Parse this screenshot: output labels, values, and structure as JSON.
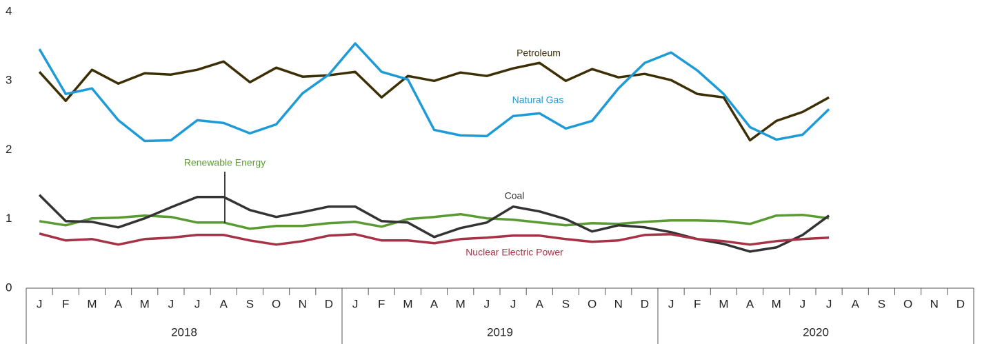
{
  "chart_data": {
    "type": "line",
    "categories": [
      "J",
      "F",
      "M",
      "A",
      "M",
      "J",
      "J",
      "A",
      "S",
      "O",
      "N",
      "D",
      "J",
      "F",
      "M",
      "A",
      "M",
      "J",
      "J",
      "A",
      "S",
      "O",
      "N",
      "D",
      "J",
      "F",
      "M",
      "A",
      "M",
      "J",
      "J",
      "A",
      "S",
      "O",
      "N",
      "D"
    ],
    "groups": [
      "2018",
      "2019",
      "2020"
    ],
    "ylim": [
      0,
      4
    ],
    "yticks": [
      0,
      1,
      2,
      3,
      4
    ],
    "series": [
      {
        "name": "Petroleum",
        "color": "#3d2f05",
        "values": [
          3.13,
          2.71,
          3.16,
          2.96,
          3.11,
          3.09,
          3.16,
          3.28,
          2.98,
          3.19,
          3.06,
          3.08,
          3.13,
          2.76,
          3.07,
          3.0,
          3.12,
          3.07,
          3.18,
          3.26,
          3.0,
          3.17,
          3.05,
          3.1,
          3.01,
          2.81,
          2.76,
          2.14,
          2.42,
          2.55,
          2.76,
          null,
          null,
          null,
          null,
          null
        ]
      },
      {
        "name": "Natural Gas",
        "color": "#1e9bd7",
        "values": [
          3.46,
          2.81,
          2.89,
          2.43,
          2.13,
          2.14,
          2.43,
          2.39,
          2.24,
          2.37,
          2.82,
          3.09,
          3.54,
          3.13,
          3.02,
          2.29,
          2.21,
          2.2,
          2.49,
          2.53,
          2.31,
          2.42,
          2.89,
          3.26,
          3.41,
          3.15,
          2.81,
          2.33,
          2.15,
          2.22,
          2.59,
          null,
          null,
          null,
          null,
          null
        ]
      },
      {
        "name": "Renewable Energy",
        "color": "#5a9a32",
        "values": [
          0.97,
          0.91,
          1.01,
          1.02,
          1.05,
          1.03,
          0.95,
          0.95,
          0.86,
          0.9,
          0.9,
          0.94,
          0.96,
          0.89,
          1.0,
          1.03,
          1.07,
          1.01,
          0.99,
          0.95,
          0.91,
          0.94,
          0.93,
          0.96,
          0.98,
          0.98,
          0.97,
          0.93,
          1.05,
          1.06,
          1.01,
          null,
          null,
          null,
          null,
          null
        ]
      },
      {
        "name": "Coal",
        "color": "#333333",
        "values": [
          1.35,
          0.97,
          0.96,
          0.88,
          1.01,
          1.17,
          1.32,
          1.32,
          1.13,
          1.03,
          1.1,
          1.18,
          1.18,
          0.97,
          0.95,
          0.74,
          0.87,
          0.95,
          1.18,
          1.11,
          1.0,
          0.82,
          0.91,
          0.88,
          0.81,
          0.71,
          0.64,
          0.53,
          0.59,
          0.77,
          1.05,
          null,
          null,
          null,
          null,
          null
        ]
      },
      {
        "name": "Nuclear Electric Power",
        "color": "#a83245",
        "values": [
          0.79,
          0.69,
          0.71,
          0.63,
          0.71,
          0.73,
          0.77,
          0.77,
          0.69,
          0.63,
          0.68,
          0.76,
          0.78,
          0.69,
          0.69,
          0.65,
          0.71,
          0.73,
          0.76,
          0.76,
          0.71,
          0.67,
          0.69,
          0.77,
          0.78,
          0.71,
          0.68,
          0.63,
          0.68,
          0.71,
          0.73,
          null,
          null,
          null,
          null,
          null
        ]
      }
    ]
  }
}
